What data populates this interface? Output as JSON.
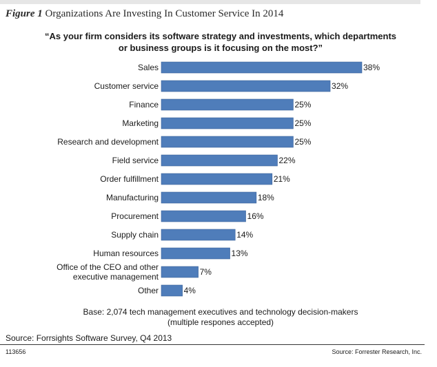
{
  "figure": {
    "label": "Figure 1",
    "title": "Organizations Are Investing In Customer Service In 2014"
  },
  "question_line1": "“As your firm considers its software strategy and investments, which departments",
  "question_line2": "or business groups is it focusing on the most?”",
  "base_line1": "Base: 2,074 tech management executives and technology decision-makers",
  "base_line2": "(multiple respones accepted)",
  "source": "Source: Forrsights Software Survey, Q4 2013",
  "doc_id": "113656",
  "credit": "Source: Forrester Research, Inc.",
  "colors": {
    "bar": "#4f7dba",
    "bar_stroke": "#3a629a"
  },
  "chart_data": {
    "type": "bar",
    "orientation": "horizontal",
    "categories": [
      [
        "Sales"
      ],
      [
        "Customer service"
      ],
      [
        "Finance"
      ],
      [
        "Marketing"
      ],
      [
        "Research and development"
      ],
      [
        "Field service"
      ],
      [
        "Order fulfillment"
      ],
      [
        "Manufacturing"
      ],
      [
        "Procurement"
      ],
      [
        "Supply chain"
      ],
      [
        "Human resources"
      ],
      [
        "Office of the CEO and other",
        "executive management"
      ],
      [
        "Other"
      ]
    ],
    "values": [
      38,
      32,
      25,
      25,
      25,
      22,
      21,
      18,
      16,
      14,
      13,
      7,
      4
    ],
    "value_labels": [
      "38%",
      "32%",
      "25%",
      "25%",
      "25%",
      "22%",
      "21%",
      "18%",
      "16%",
      "14%",
      "13%",
      "7%",
      "4%"
    ],
    "xlim": [
      0,
      38
    ]
  }
}
